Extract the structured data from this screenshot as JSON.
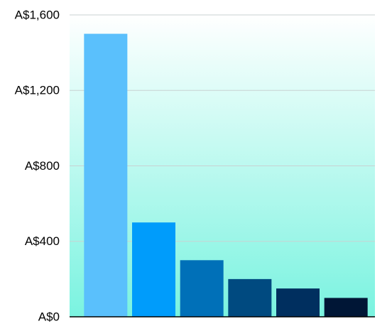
{
  "chart_data": {
    "type": "bar",
    "categories": [
      null,
      null,
      null,
      null,
      null,
      null
    ],
    "values": [
      1500,
      500,
      300,
      200,
      150,
      100
    ],
    "colors": [
      "#5ac0fc",
      "#009cfb",
      "#0070b8",
      "#004a80",
      "#002f5f",
      "#001636"
    ],
    "ylim": [
      0,
      1600
    ],
    "yticks": [
      {
        "value": 0,
        "label": "A$0"
      },
      {
        "value": 400,
        "label": "A$400"
      },
      {
        "value": 800,
        "label": "A$800"
      },
      {
        "value": 1200,
        "label": "A$1,200"
      },
      {
        "value": 1600,
        "label": "A$1,600"
      }
    ],
    "grid": true
  }
}
